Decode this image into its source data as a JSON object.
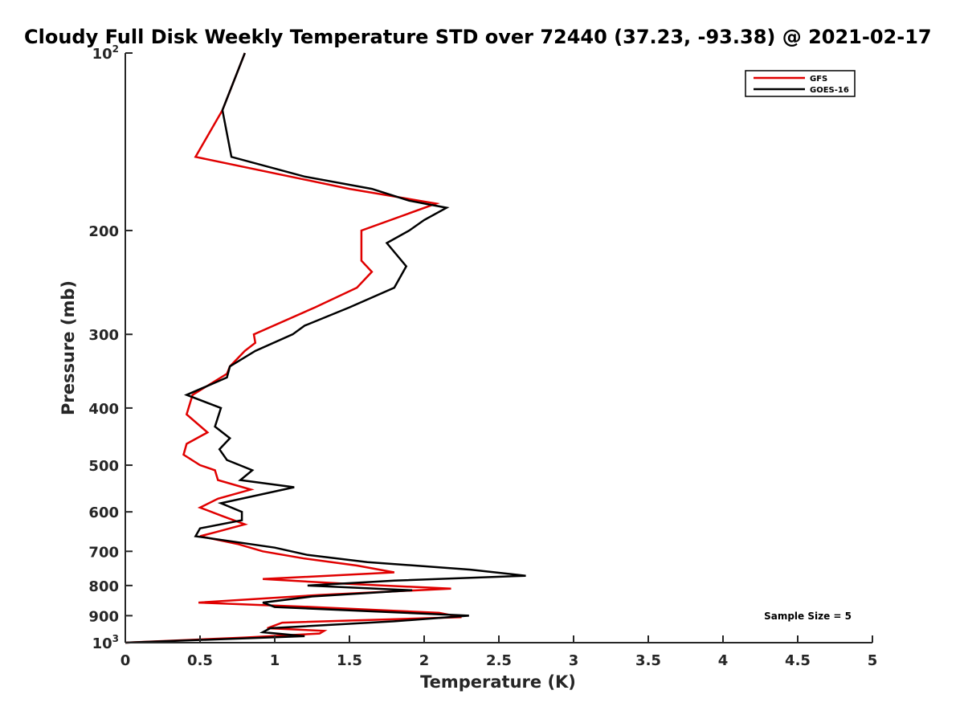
{
  "chart_data": {
    "type": "line",
    "title": "Cloudy Full Disk Weekly Temperature STD over 72440 (37.23, -93.38) @ 2021-02-17",
    "xlabel": "Temperature (K)",
    "ylabel": "Pressure (mb)",
    "xlim": [
      0,
      5
    ],
    "ylim": [
      1000,
      100
    ],
    "y_scale": "log",
    "y_reversed": true,
    "x_ticks": [
      0,
      0.5,
      1,
      1.5,
      2,
      2.5,
      3,
      3.5,
      4,
      4.5,
      5
    ],
    "x_tick_labels": [
      "0",
      "0.5",
      "1",
      "1.5",
      "2",
      "2.5",
      "3",
      "3.5",
      "4",
      "4.5",
      "5"
    ],
    "y_ticks": [
      {
        "value": 100,
        "base": "10",
        "exp": "2"
      },
      {
        "value": 200,
        "label": "200"
      },
      {
        "value": 300,
        "label": "300"
      },
      {
        "value": 400,
        "label": "400"
      },
      {
        "value": 500,
        "label": "500"
      },
      {
        "value": 600,
        "label": "600"
      },
      {
        "value": 700,
        "label": "700"
      },
      {
        "value": 800,
        "label": "800"
      },
      {
        "value": 900,
        "label": "900"
      },
      {
        "value": 1000,
        "base": "10",
        "exp": "3"
      }
    ],
    "legend_position": "top-right",
    "grid": false,
    "series": [
      {
        "name": "GFS",
        "color": "#e00000",
        "points": [
          [
            0.8,
            100
          ],
          [
            0.65,
            125
          ],
          [
            0.47,
            150
          ],
          [
            1.5,
            170
          ],
          [
            2.08,
            180
          ],
          [
            1.58,
            200
          ],
          [
            1.58,
            225
          ],
          [
            1.65,
            235
          ],
          [
            1.55,
            250
          ],
          [
            1.27,
            270
          ],
          [
            0.86,
            300
          ],
          [
            0.87,
            310
          ],
          [
            0.8,
            320
          ],
          [
            0.7,
            340
          ],
          [
            0.68,
            350
          ],
          [
            0.45,
            380
          ],
          [
            0.41,
            410
          ],
          [
            0.55,
            440
          ],
          [
            0.41,
            460
          ],
          [
            0.39,
            480
          ],
          [
            0.5,
            500
          ],
          [
            0.6,
            510
          ],
          [
            0.62,
            530
          ],
          [
            0.84,
            550
          ],
          [
            0.62,
            570
          ],
          [
            0.5,
            590
          ],
          [
            0.65,
            610
          ],
          [
            0.8,
            630
          ],
          [
            0.6,
            650
          ],
          [
            0.5,
            660
          ],
          [
            0.75,
            680
          ],
          [
            0.92,
            700
          ],
          [
            1.2,
            720
          ],
          [
            1.55,
            740
          ],
          [
            1.8,
            760
          ],
          [
            0.92,
            780
          ],
          [
            1.5,
            795
          ],
          [
            2.18,
            810
          ],
          [
            1.3,
            830
          ],
          [
            0.49,
            855
          ],
          [
            1.25,
            870
          ],
          [
            2.1,
            890
          ],
          [
            2.25,
            905
          ],
          [
            1.05,
            925
          ],
          [
            0.95,
            945
          ],
          [
            1.33,
            955
          ],
          [
            1.3,
            965
          ],
          [
            0.8,
            980
          ],
          [
            0.0,
            1000
          ]
        ]
      },
      {
        "name": "GOES-16",
        "color": "#000000",
        "points": [
          [
            0.8,
            100
          ],
          [
            0.65,
            125
          ],
          [
            0.71,
            150
          ],
          [
            1.2,
            162
          ],
          [
            1.65,
            170
          ],
          [
            1.9,
            178
          ],
          [
            2.15,
            183
          ],
          [
            2.0,
            192
          ],
          [
            1.9,
            200
          ],
          [
            1.75,
            210
          ],
          [
            1.88,
            230
          ],
          [
            1.8,
            250
          ],
          [
            1.5,
            270
          ],
          [
            1.2,
            290
          ],
          [
            1.12,
            300
          ],
          [
            0.87,
            320
          ],
          [
            0.7,
            340
          ],
          [
            0.68,
            355
          ],
          [
            0.41,
            380
          ],
          [
            0.64,
            400
          ],
          [
            0.6,
            430
          ],
          [
            0.7,
            450
          ],
          [
            0.63,
            470
          ],
          [
            0.68,
            490
          ],
          [
            0.85,
            510
          ],
          [
            0.77,
            530
          ],
          [
            1.13,
            545
          ],
          [
            0.64,
            580
          ],
          [
            0.78,
            600
          ],
          [
            0.78,
            620
          ],
          [
            0.5,
            640
          ],
          [
            0.47,
            660
          ],
          [
            1.0,
            690
          ],
          [
            1.22,
            710
          ],
          [
            1.62,
            730
          ],
          [
            2.31,
            752
          ],
          [
            2.68,
            770
          ],
          [
            1.8,
            785
          ],
          [
            1.22,
            800
          ],
          [
            1.92,
            815
          ],
          [
            1.25,
            835
          ],
          [
            0.92,
            855
          ],
          [
            1.0,
            870
          ],
          [
            2.3,
            900
          ],
          [
            1.8,
            920
          ],
          [
            0.97,
            945
          ],
          [
            0.92,
            960
          ],
          [
            1.2,
            975
          ],
          [
            0.0,
            1000
          ]
        ]
      }
    ],
    "annotation": "Sample Size = 5"
  }
}
